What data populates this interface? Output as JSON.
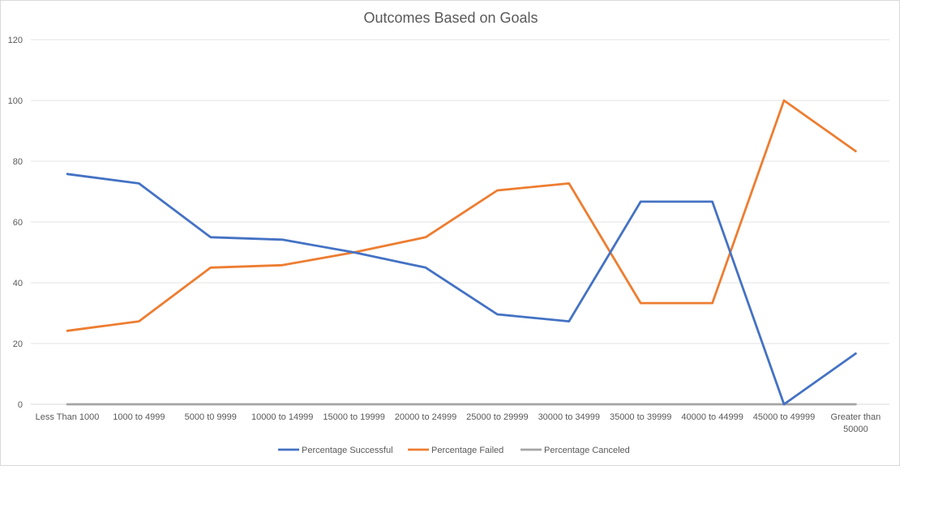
{
  "chart_data": {
    "type": "line",
    "title": "Outcomes Based on Goals",
    "xlabel": "",
    "ylabel": "",
    "ylim": [
      0,
      120
    ],
    "yticks": [
      0,
      20,
      40,
      60,
      80,
      100,
      120
    ],
    "grid": true,
    "legend_position": "bottom",
    "categories": [
      "Less Than 1000",
      "1000 to 4999",
      "5000 t0 9999",
      "10000 to 14999",
      "15000 to 19999",
      "20000 to 24999",
      "25000 to 29999",
      "30000 to 34999",
      "35000 to 39999",
      "40000 to 44999",
      "45000 to 49999",
      "Greater than 50000"
    ],
    "series": [
      {
        "name": "Percentage Successful",
        "color": "#4472c4",
        "values": [
          75.8,
          72.7,
          55,
          54.2,
          50,
          45,
          29.6,
          27.3,
          66.7,
          66.7,
          0,
          16.7
        ]
      },
      {
        "name": "Percentage Failed",
        "color": "#ed7d31",
        "values": [
          24.2,
          27.3,
          45,
          45.8,
          50,
          55,
          70.4,
          72.7,
          33.3,
          33.3,
          100,
          83.3
        ]
      },
      {
        "name": "Percentage Canceled",
        "color": "#a5a5a5",
        "values": [
          0,
          0,
          0,
          0,
          0,
          0,
          0,
          0,
          0,
          0,
          0,
          0
        ]
      }
    ]
  }
}
